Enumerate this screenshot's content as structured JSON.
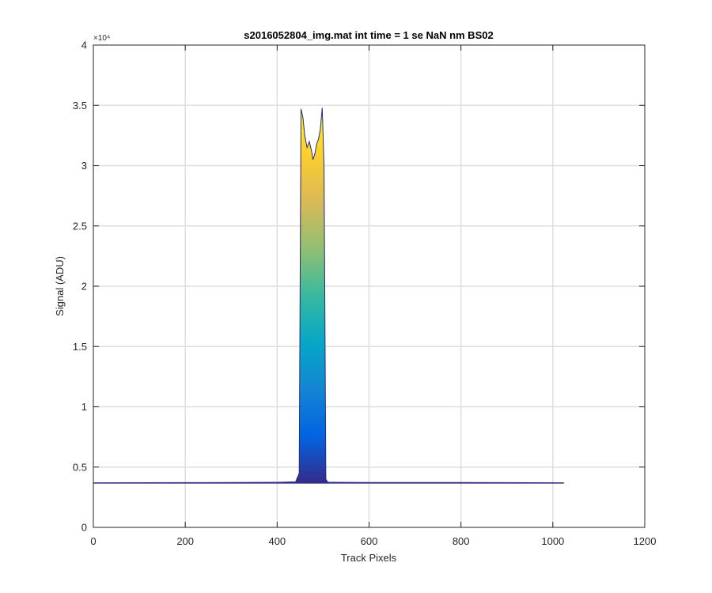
{
  "chart_data": {
    "type": "line",
    "title": "s2016052804_img.mat int time = 1 se  NaN nm BS02",
    "xlabel": "Track Pixels",
    "ylabel": "Signal (ADU)",
    "xlim": [
      0,
      1200
    ],
    "ylim": [
      0,
      40000
    ],
    "xticks": [
      0,
      200,
      400,
      600,
      800,
      1000,
      1200
    ],
    "xtick_labels": [
      "0",
      "200",
      "400",
      "600",
      "800",
      "1000",
      "1200"
    ],
    "yticks": [
      0,
      5000,
      10000,
      15000,
      20000,
      25000,
      30000,
      35000,
      40000
    ],
    "ytick_labels": [
      "0",
      "0.5",
      "1",
      "1.5",
      "2",
      "2.5",
      "3",
      "3.5",
      "4"
    ],
    "y_exponent_label": "×10⁴",
    "grid": true,
    "colormap": [
      "#352a87",
      "#0363e1",
      "#1485d4",
      "#06a7c6",
      "#38b99e",
      "#92bf73",
      "#d9ba56",
      "#fcce2e",
      "#f9fb0e"
    ],
    "line_color": "#2a2a7a",
    "series": [
      {
        "x": [
          0,
          100,
          200,
          300,
          400,
          440,
          448,
          452,
          456,
          460,
          465,
          470,
          475,
          478,
          482,
          486,
          490,
          494,
          498,
          502,
          506,
          510,
          515,
          520,
          600,
          700,
          800,
          900,
          1024
        ],
        "y": [
          3700,
          3705,
          3710,
          3720,
          3740,
          3780,
          4500,
          34700,
          34000,
          32500,
          31500,
          32000,
          31200,
          30500,
          31000,
          31800,
          32200,
          33000,
          34800,
          30000,
          4000,
          3760,
          3740,
          3735,
          3725,
          3720,
          3715,
          3710,
          3700
        ]
      }
    ]
  }
}
